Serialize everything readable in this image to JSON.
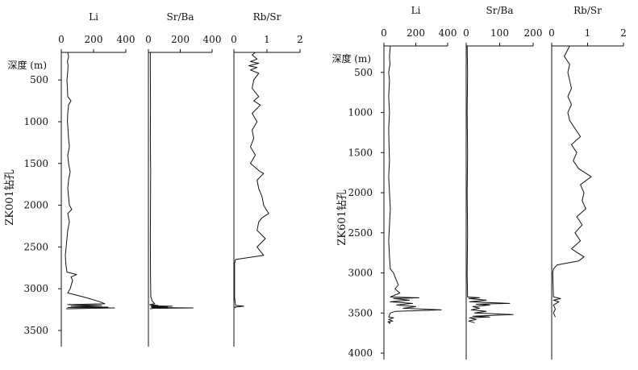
{
  "chart_data": [
    {
      "type": "line",
      "well_label": "ZK001钻孔",
      "depth_label": "深度 (m)",
      "y_ticks": [
        "500",
        "1000",
        "1500",
        "2000",
        "2500",
        "3000",
        "3500"
      ],
      "ylim": [
        3500,
        100
      ],
      "tracks": [
        {
          "name": "Li",
          "xlim": [
            0,
            400
          ],
          "x_ticks": [
            "0",
            "200",
            "400"
          ],
          "depth": [
            170,
            220,
            280,
            330,
            400,
            500,
            600,
            700,
            750,
            800,
            900,
            1000,
            1100,
            1200,
            1300,
            1400,
            1500,
            1600,
            1700,
            1800,
            1900,
            2000,
            2050,
            2100,
            2200,
            2300,
            2400,
            2500,
            2600,
            2700,
            2800,
            2830,
            2860,
            2900,
            3000,
            3050,
            3100,
            3150,
            3180,
            3190,
            3200,
            3210,
            3220,
            3225,
            3230,
            3240
          ],
          "values": [
            40,
            45,
            38,
            42,
            40,
            35,
            38,
            40,
            60,
            45,
            40,
            38,
            42,
            45,
            50,
            40,
            45,
            55,
            45,
            40,
            45,
            50,
            65,
            40,
            50,
            40,
            35,
            30,
            25,
            28,
            35,
            95,
            60,
            70,
            55,
            40,
            140,
            230,
            270,
            40,
            250,
            60,
            290,
            40,
            330,
            30
          ]
        },
        {
          "name": "Sr/Ba",
          "xlim": [
            0,
            400
          ],
          "x_ticks": [
            "0",
            "200",
            "400"
          ],
          "depth": [
            170,
            400,
            800,
            1200,
            1600,
            2000,
            2400,
            2800,
            3000,
            3100,
            3150,
            3180,
            3190,
            3200,
            3205,
            3210,
            3215,
            3220,
            3225,
            3230,
            3235,
            3240
          ],
          "values": [
            12,
            12,
            13,
            12,
            14,
            13,
            12,
            13,
            14,
            15,
            25,
            40,
            8,
            60,
            15,
            150,
            20,
            120,
            20,
            280,
            30,
            10
          ]
        },
        {
          "name": "Rb/Sr",
          "xlim": [
            0,
            2
          ],
          "x_ticks": [
            "0",
            "1",
            "2"
          ],
          "depth": [
            170,
            200,
            250,
            280,
            300,
            330,
            350,
            380,
            420,
            500,
            600,
            700,
            750,
            800,
            900,
            1000,
            1100,
            1200,
            1300,
            1400,
            1500,
            1600,
            1620,
            1700,
            1800,
            1900,
            2000,
            2100,
            2150,
            2200,
            2300,
            2400,
            2500,
            2600,
            2650,
            2700,
            2800,
            2900,
            3000,
            3100,
            3200,
            3210,
            3220,
            3230
          ],
          "values": [
            0.65,
            0.55,
            0.7,
            0.5,
            0.75,
            0.45,
            0.7,
            0.5,
            0.75,
            0.6,
            0.55,
            0.75,
            0.6,
            0.8,
            0.55,
            0.7,
            0.55,
            0.6,
            0.5,
            0.65,
            0.5,
            0.8,
            0.9,
            0.7,
            0.75,
            0.85,
            0.9,
            1.05,
            0.85,
            0.75,
            0.7,
            0.95,
            0.7,
            0.9,
            0.05,
            0.02,
            0.02,
            0.02,
            0.02,
            0.02,
            0.05,
            0.3,
            0.02,
            0.05
          ]
        }
      ]
    },
    {
      "type": "line",
      "well_label": "ZK601钻孔",
      "depth_label": "深度 (m)",
      "y_ticks": [
        "500",
        "1000",
        "1500",
        "2000",
        "2500",
        "3000",
        "3500",
        "4000"
      ],
      "ylim": [
        4000,
        100
      ],
      "tracks": [
        {
          "name": "Li",
          "xlim": [
            0,
            400
          ],
          "x_ticks": [
            "0",
            "200",
            "400"
          ],
          "depth": [
            170,
            300,
            400,
            500,
            600,
            800,
            1000,
            1200,
            1400,
            1600,
            1800,
            2000,
            2200,
            2400,
            2600,
            2800,
            2950,
            3000,
            3100,
            3150,
            3200,
            3250,
            3300,
            3310,
            3320,
            3340,
            3360,
            3380,
            3400,
            3420,
            3440,
            3460,
            3480,
            3500,
            3550,
            3560,
            3580,
            3600,
            3610,
            3620,
            3630
          ],
          "values": [
            40,
            35,
            38,
            30,
            35,
            30,
            35,
            30,
            32,
            35,
            30,
            35,
            40,
            35,
            30,
            35,
            40,
            60,
            80,
            90,
            70,
            100,
            40,
            220,
            60,
            160,
            40,
            180,
            80,
            200,
            120,
            360,
            70,
            40,
            30,
            60,
            30,
            55,
            25,
            40,
            30
          ]
        },
        {
          "name": "Sr/Ba",
          "xlim": [
            0,
            200
          ],
          "x_ticks": [
            "0",
            "100",
            "200"
          ],
          "depth": [
            170,
            500,
            1000,
            1500,
            2000,
            2500,
            3000,
            3300,
            3310,
            3320,
            3340,
            3360,
            3380,
            3390,
            3400,
            3420,
            3440,
            3460,
            3480,
            3500,
            3520,
            3540,
            3550,
            3560,
            3580,
            3600,
            3620
          ],
          "values": [
            3,
            4,
            3,
            4,
            3,
            4,
            3,
            4,
            40,
            8,
            60,
            10,
            130,
            30,
            70,
            20,
            40,
            15,
            60,
            25,
            140,
            20,
            70,
            10,
            30,
            8,
            25
          ]
        },
        {
          "name": "Rb/Sr",
          "xlim": [
            0,
            2
          ],
          "x_ticks": [
            "0",
            "1",
            "2"
          ],
          "depth": [
            170,
            300,
            400,
            500,
            600,
            700,
            800,
            900,
            1000,
            1100,
            1200,
            1300,
            1400,
            1500,
            1600,
            1700,
            1800,
            1900,
            2000,
            2100,
            2200,
            2300,
            2400,
            2500,
            2600,
            2700,
            2800,
            2850,
            2900,
            2950,
            3000,
            3300,
            3320,
            3340,
            3360,
            3400,
            3450,
            3500,
            3550
          ],
          "values": [
            0.5,
            0.35,
            0.5,
            0.45,
            0.5,
            0.55,
            0.45,
            0.55,
            0.45,
            0.5,
            0.65,
            0.8,
            0.55,
            0.7,
            0.6,
            0.75,
            1.1,
            0.8,
            0.9,
            0.85,
            0.95,
            0.7,
            0.85,
            0.65,
            0.8,
            0.55,
            0.9,
            0.75,
            0.15,
            0.05,
            0.03,
            0.05,
            0.25,
            0.05,
            0.2,
            0.05,
            0.1,
            0.05,
            0.1
          ]
        }
      ]
    }
  ]
}
